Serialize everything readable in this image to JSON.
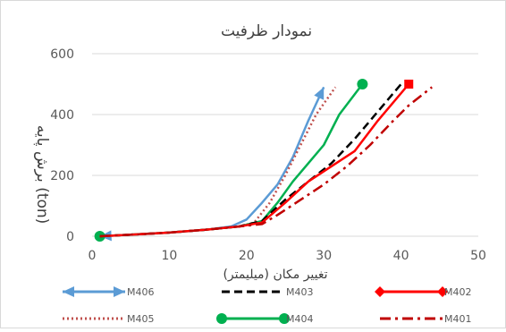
{
  "chart_data": {
    "type": "line",
    "title": "نمودار ظرفیت",
    "xlabel": "تغییر مکان (میلیمتر)",
    "ylabel": "برش پایه (ton)",
    "xlim": [
      0,
      50
    ],
    "ylim": [
      0,
      600
    ],
    "x_ticks": [
      0,
      10,
      20,
      30,
      40,
      50
    ],
    "y_ticks": [
      0,
      200,
      400,
      600
    ],
    "x_tick_labels": [
      "0",
      "10",
      "20",
      "30",
      "40",
      "50"
    ],
    "y_tick_labels": [
      "0",
      "200",
      "400",
      "600"
    ],
    "grid": "horizontal",
    "legend_position": "bottom",
    "series": [
      {
        "name": "M406",
        "color": "#5b9bd5",
        "dash": "solid",
        "marker": "arrow",
        "start_marker": "arrow",
        "x": [
          1,
          5,
          10,
          15,
          18,
          20,
          22,
          24,
          26,
          28,
          30
        ],
        "y": [
          0,
          5,
          12,
          22,
          32,
          55,
          110,
          170,
          260,
          380,
          490
        ]
      },
      {
        "name": "M405",
        "color": "#c0504d",
        "dash": "dotted",
        "marker": "none",
        "x": [
          1,
          5,
          10,
          15,
          19,
          21,
          23,
          25,
          27,
          29,
          31.5
        ],
        "y": [
          0,
          5,
          12,
          22,
          32,
          45,
          110,
          200,
          300,
          400,
          490
        ]
      },
      {
        "name": "M404",
        "color": "#00b050",
        "dash": "solid",
        "marker": "circle",
        "start_marker": "circle",
        "x": [
          1,
          5,
          10,
          15,
          19,
          22,
          24,
          26,
          28,
          30,
          32,
          35
        ],
        "y": [
          0,
          5,
          12,
          22,
          32,
          50,
          110,
          180,
          240,
          300,
          400,
          500
        ]
      },
      {
        "name": "M403",
        "color": "#000000",
        "dash": "dashed",
        "marker": "none",
        "x": [
          1,
          5,
          10,
          15,
          19,
          22,
          25,
          28,
          31,
          34,
          37,
          40
        ],
        "y": [
          0,
          5,
          12,
          22,
          32,
          50,
          120,
          180,
          240,
          320,
          410,
          500
        ]
      },
      {
        "name": "M402",
        "color": "#ff0000",
        "dash": "solid",
        "marker": "diamond",
        "end_marker": "square",
        "x": [
          1,
          5,
          10,
          15,
          19,
          22,
          25,
          28,
          31,
          34,
          37,
          41
        ],
        "y": [
          0,
          5,
          12,
          22,
          32,
          45,
          110,
          180,
          230,
          280,
          380,
          500
        ]
      },
      {
        "name": "M401",
        "color": "#c00000",
        "dash": "dashdot",
        "marker": "none",
        "x": [
          1,
          5,
          10,
          15,
          19,
          22,
          24,
          27,
          30,
          33,
          36,
          39,
          41,
          44
        ],
        "y": [
          0,
          5,
          12,
          22,
          32,
          40,
          70,
          120,
          170,
          230,
          300,
          380,
          430,
          490
        ]
      }
    ]
  }
}
